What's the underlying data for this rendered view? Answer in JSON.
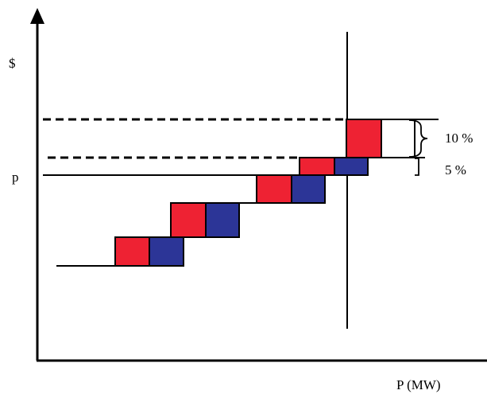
{
  "labels": {
    "y_axis": "$",
    "price": "p",
    "x_axis": "P (MW)",
    "band_upper": "10 %",
    "band_lower": "5 %"
  },
  "colors": {
    "red": "#ee2233",
    "blue": "#2c3597",
    "line": "#000000"
  }
}
